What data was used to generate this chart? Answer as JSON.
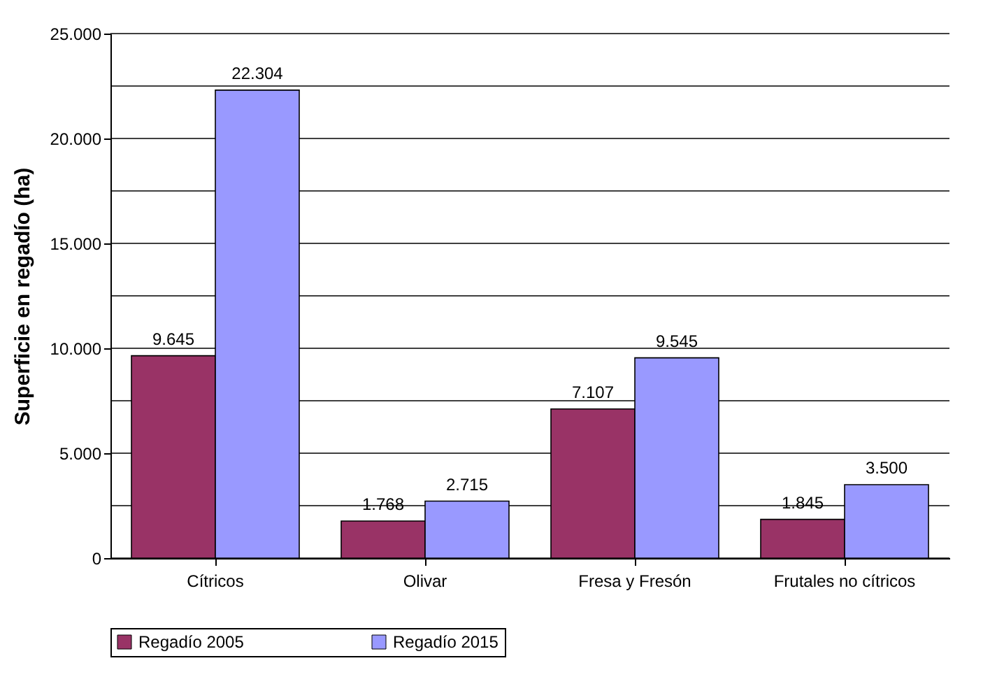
{
  "chart_data": {
    "type": "bar",
    "ylabel": "Superficie en regadío (ha)",
    "categories": [
      "Cítricos",
      "Olivar",
      "Fresa y Fresón",
      "Frutales no cítricos"
    ],
    "series": [
      {
        "name": "Regadío 2005",
        "color": "#993366",
        "values": [
          9645,
          1768,
          7107,
          1845
        ],
        "value_labels": [
          "9.645",
          "1.768",
          "7.107",
          "1.845"
        ]
      },
      {
        "name": "Regadío 2015",
        "color": "#9999ff",
        "values": [
          22304,
          2715,
          9545,
          3500
        ],
        "value_labels": [
          "22.304",
          "2.715",
          "9.545",
          "3.500"
        ]
      }
    ],
    "ylim": [
      0,
      25000
    ],
    "yticks": [
      0,
      {
        "value": 2500,
        "label": null
      },
      {
        "value": 5000,
        "label": "5.000"
      },
      {
        "value": 7500,
        "label": null
      },
      {
        "value": 10000,
        "label": "10.000"
      },
      {
        "value": 12500,
        "label": null
      },
      {
        "value": 15000,
        "label": "15.000"
      },
      {
        "value": 17500,
        "label": null
      },
      {
        "value": 20000,
        "label": "20.000"
      },
      {
        "value": 22500,
        "label": null
      },
      {
        "value": 25000,
        "label": "25.000"
      }
    ],
    "grid": "y",
    "legend": "bottom"
  }
}
